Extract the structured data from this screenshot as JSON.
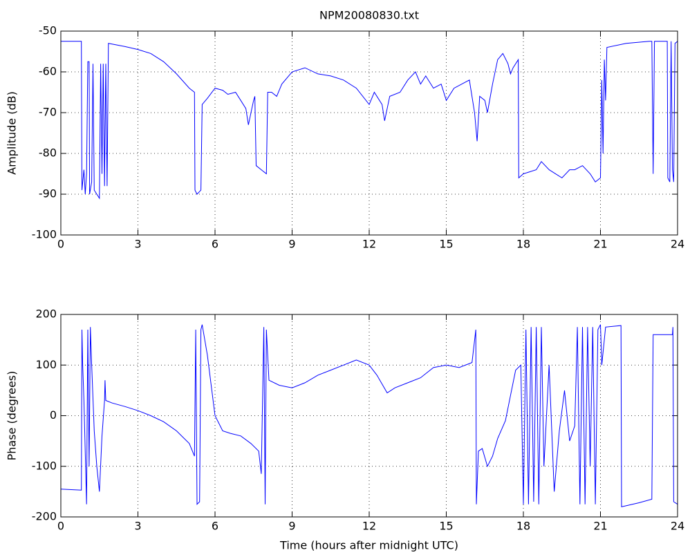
{
  "chart_data": [
    {
      "type": "line",
      "title": "NPM20080830.txt",
      "ylabel": "Amplitude (dB)",
      "color": "#0000ff",
      "grid": true,
      "xlim": [
        0,
        24
      ],
      "xticks": [
        0,
        3,
        6,
        9,
        12,
        15,
        18,
        21,
        24
      ],
      "ylim": [
        -100,
        -50
      ],
      "yticks": [
        -100,
        -90,
        -80,
        -70,
        -60,
        -50
      ],
      "x": [
        0,
        0.8,
        0.82,
        0.9,
        0.95,
        1.0,
        1.05,
        1.1,
        1.12,
        1.2,
        1.25,
        1.3,
        1.4,
        1.5,
        1.55,
        1.6,
        1.65,
        1.7,
        1.75,
        1.8,
        1.85,
        2.5,
        3.0,
        3.5,
        4.0,
        4.5,
        5.0,
        5.2,
        5.22,
        5.3,
        5.45,
        5.5,
        5.7,
        6.0,
        6.3,
        6.5,
        6.8,
        7.0,
        7.2,
        7.3,
        7.4,
        7.5,
        7.55,
        7.6,
        7.8,
        8.0,
        8.05,
        8.2,
        8.4,
        8.6,
        9.0,
        9.5,
        10.0,
        10.5,
        11.0,
        11.5,
        12.0,
        12.2,
        12.5,
        12.6,
        12.8,
        13.2,
        13.5,
        13.8,
        14.0,
        14.2,
        14.5,
        14.8,
        15.0,
        15.3,
        15.6,
        15.9,
        16.1,
        16.2,
        16.3,
        16.5,
        16.6,
        16.8,
        17.0,
        17.2,
        17.4,
        17.5,
        17.6,
        17.8,
        17.82,
        18.0,
        18.5,
        18.7,
        19.0,
        19.5,
        19.8,
        20.0,
        20.3,
        20.6,
        20.8,
        21.0,
        21.05,
        21.1,
        21.15,
        21.2,
        21.25,
        22.0,
        22.9,
        23.0,
        23.05,
        23.1,
        23.6,
        23.62,
        23.7,
        23.75,
        23.8,
        23.85,
        23.9,
        24
      ],
      "values": [
        -52.5,
        -52.5,
        -89,
        -84,
        -90,
        -85,
        -57.5,
        -57.5,
        -90,
        -87,
        -58,
        -89,
        -90,
        -91,
        -58,
        -85,
        -58,
        -88,
        -58,
        -88,
        -53,
        -53.8,
        -54.5,
        -55.5,
        -57.5,
        -60.5,
        -64,
        -65,
        -89,
        -90,
        -89,
        -68,
        -66.5,
        -64,
        -64.5,
        -65.5,
        -65,
        -67,
        -69,
        -73,
        -70,
        -67,
        -66,
        -83,
        -84,
        -85,
        -65,
        -65,
        -66,
        -63,
        -60,
        -59,
        -60.5,
        -61,
        -62,
        -64,
        -68,
        -65,
        -68,
        -72,
        -66,
        -65,
        -62,
        -60,
        -63,
        -61,
        -64,
        -63,
        -67,
        -64,
        -63,
        -62,
        -70,
        -77,
        -66,
        -67,
        -70,
        -63,
        -57,
        -55.5,
        -58,
        -60.5,
        -59,
        -57,
        -86,
        -85,
        -84,
        -82,
        -84,
        -86,
        -84,
        -84,
        -83,
        -85,
        -87,
        -86,
        -62,
        -80,
        -57,
        -67,
        -54,
        -53,
        -52.5,
        -52.5,
        -85,
        -52.5,
        -52.5,
        -86,
        -87,
        -52.5,
        -84,
        -87,
        -53,
        -52.5
      ]
    },
    {
      "type": "line",
      "xlabel": "Time (hours after midnight UTC)",
      "ylabel": "Phase (degrees)",
      "color": "#0000ff",
      "grid": true,
      "xlim": [
        0,
        24
      ],
      "xticks": [
        0,
        3,
        6,
        9,
        12,
        15,
        18,
        21,
        24
      ],
      "ylim": [
        -200,
        200
      ],
      "yticks": [
        -200,
        -100,
        0,
        100,
        200
      ],
      "x": [
        0,
        0.8,
        0.82,
        0.85,
        0.9,
        1.0,
        1.05,
        1.1,
        1.15,
        1.2,
        1.3,
        1.4,
        1.5,
        1.6,
        1.7,
        1.72,
        1.75,
        2.0,
        2.5,
        3.0,
        3.5,
        4.0,
        4.5,
        5.0,
        5.2,
        5.25,
        5.3,
        5.4,
        5.45,
        5.5,
        5.7,
        5.9,
        6.0,
        6.3,
        6.6,
        7.0,
        7.4,
        7.7,
        7.8,
        7.9,
        7.95,
        8.0,
        8.1,
        8.5,
        9.0,
        9.5,
        10.0,
        10.5,
        11.0,
        11.5,
        12.0,
        12.3,
        12.7,
        13.0,
        13.5,
        14.0,
        14.5,
        15.0,
        15.5,
        16.0,
        16.15,
        16.17,
        16.25,
        16.4,
        16.6,
        16.8,
        17.0,
        17.3,
        17.5,
        17.7,
        17.9,
        18.0,
        18.1,
        18.2,
        18.3,
        18.4,
        18.5,
        18.6,
        18.7,
        18.8,
        19.0,
        19.2,
        19.4,
        19.6,
        19.8,
        20.0,
        20.1,
        20.2,
        20.3,
        20.4,
        20.5,
        20.6,
        20.7,
        20.8,
        20.9,
        21.0,
        21.05,
        21.2,
        21.8,
        21.82,
        22.5,
        23.0,
        23.05,
        23.8,
        23.82,
        23.85,
        24
      ],
      "values": [
        -145,
        -147,
        170,
        100,
        30,
        -175,
        170,
        -100,
        175,
        100,
        -30,
        -100,
        -150,
        -40,
        30,
        70,
        30,
        25,
        18,
        10,
        0,
        -12,
        -30,
        -55,
        -80,
        170,
        -175,
        -170,
        170,
        180,
        120,
        40,
        0,
        -30,
        -35,
        -40,
        -55,
        -70,
        -115,
        175,
        -175,
        170,
        70,
        60,
        55,
        65,
        80,
        90,
        100,
        110,
        100,
        80,
        45,
        55,
        65,
        75,
        95,
        100,
        95,
        105,
        170,
        -175,
        -70,
        -65,
        -100,
        -80,
        -45,
        -10,
        40,
        90,
        100,
        -175,
        170,
        -175,
        175,
        -170,
        175,
        -175,
        175,
        -100,
        100,
        -150,
        -30,
        50,
        -50,
        -20,
        175,
        -175,
        175,
        -175,
        175,
        -100,
        175,
        -175,
        170,
        180,
        100,
        175,
        178,
        -180,
        -172,
        -165,
        160,
        160,
        175,
        -170,
        -175
      ]
    }
  ]
}
